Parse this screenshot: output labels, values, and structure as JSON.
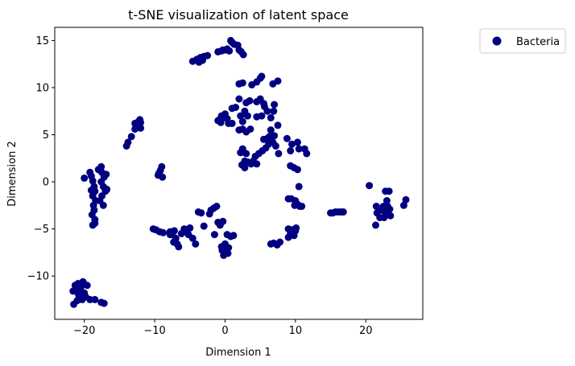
{
  "chart_data": {
    "type": "scatter",
    "title": "t-SNE visualization of latent space",
    "xlabel": "Dimension 1",
    "ylabel": "Dimension 2",
    "xlim": [
      -24.2,
      28.1
    ],
    "ylim": [
      -14.6,
      16.4
    ],
    "xticks": [
      -20,
      -10,
      0,
      10,
      20
    ],
    "yticks": [
      -10,
      -5,
      0,
      5,
      10,
      15
    ],
    "grid": false,
    "legend_position": "outside-top-right",
    "series": [
      {
        "name": "Bacteria",
        "color": "#000080",
        "points": [
          [
            -21.5,
            -13.0
          ],
          [
            -21.3,
            -11.0
          ],
          [
            -21.0,
            -11.5
          ],
          [
            -20.8,
            -12.0
          ],
          [
            -20.5,
            -11.2
          ],
          [
            -20.2,
            -10.6
          ],
          [
            -20.0,
            -11.8
          ],
          [
            -19.8,
            -12.2
          ],
          [
            -20.3,
            -12.5
          ],
          [
            -20.9,
            -10.8
          ],
          [
            -21.6,
            -11.6
          ],
          [
            -19.6,
            -11.0
          ],
          [
            -20.6,
            -11.9
          ],
          [
            -19.2,
            -12.5
          ],
          [
            -18.5,
            -12.5
          ],
          [
            -17.6,
            -12.8
          ],
          [
            -17.2,
            -12.9
          ],
          [
            -21.0,
            -12.6
          ],
          [
            -20.0,
            0.4
          ],
          [
            -19.0,
            0.6
          ],
          [
            -18.8,
            0.1
          ],
          [
            -19.2,
            1.0
          ],
          [
            -18.6,
            -0.5
          ],
          [
            -18.5,
            -1.0
          ],
          [
            -18.8,
            -1.5
          ],
          [
            -18.4,
            -2.0
          ],
          [
            -18.7,
            -2.5
          ],
          [
            -18.6,
            -3.0
          ],
          [
            -18.9,
            -3.5
          ],
          [
            -18.5,
            -4.0
          ],
          [
            -18.8,
            -4.6
          ],
          [
            -18.5,
            -4.4
          ],
          [
            -18.0,
            1.3
          ],
          [
            -17.6,
            1.6
          ],
          [
            -17.5,
            1.0
          ],
          [
            -17.2,
            0.5
          ],
          [
            -17.6,
            0.0
          ],
          [
            -17.3,
            -0.5
          ],
          [
            -17.0,
            -1.0
          ],
          [
            -17.5,
            -1.5
          ],
          [
            -17.8,
            -2.0
          ],
          [
            -17.3,
            -2.5
          ],
          [
            -16.9,
            0.8
          ],
          [
            -16.8,
            -0.8
          ],
          [
            -19.0,
            -0.9
          ],
          [
            -14.0,
            3.8
          ],
          [
            -13.8,
            4.2
          ],
          [
            -13.3,
            4.8
          ],
          [
            -12.8,
            5.6
          ],
          [
            -12.6,
            6.1
          ],
          [
            -12.3,
            6.4
          ],
          [
            -12.0,
            6.3
          ],
          [
            -12.4,
            5.9
          ],
          [
            -12.1,
            6.6
          ],
          [
            -12.8,
            6.2
          ],
          [
            -12.0,
            5.7
          ],
          [
            -9.5,
            0.7
          ],
          [
            -9.2,
            1.2
          ],
          [
            -9.0,
            1.6
          ],
          [
            -8.9,
            0.5
          ],
          [
            -9.4,
            0.9
          ],
          [
            -10.2,
            -5.0
          ],
          [
            -9.8,
            -5.1
          ],
          [
            -9.3,
            -5.3
          ],
          [
            -8.8,
            -5.4
          ],
          [
            -7.8,
            -5.3
          ],
          [
            -7.5,
            -5.6
          ],
          [
            -7.2,
            -5.2
          ],
          [
            -7.0,
            -6.0
          ],
          [
            -6.8,
            -6.6
          ],
          [
            -6.6,
            -6.9
          ],
          [
            -6.2,
            -5.5
          ],
          [
            -5.8,
            -5.0
          ],
          [
            -5.5,
            -5.3
          ],
          [
            -5.2,
            -5.6
          ],
          [
            -5.0,
            -4.9
          ],
          [
            -4.6,
            -6.0
          ],
          [
            -4.2,
            -6.6
          ],
          [
            -3.8,
            -3.2
          ],
          [
            -3.4,
            -3.3
          ],
          [
            -3.0,
            -4.7
          ],
          [
            -2.2,
            -3.4
          ],
          [
            -2.0,
            -3.0
          ],
          [
            -1.6,
            -2.8
          ],
          [
            -1.2,
            -2.6
          ],
          [
            -7.8,
            -5.6
          ],
          [
            -7.3,
            -6.4
          ],
          [
            -1.5,
            -5.6
          ],
          [
            -1.0,
            -4.3
          ],
          [
            -0.7,
            -4.6
          ],
          [
            -0.3,
            -4.2
          ],
          [
            0.3,
            -5.6
          ],
          [
            0.8,
            -5.8
          ],
          [
            1.2,
            -5.7
          ],
          [
            -0.4,
            -7.3
          ],
          [
            0.0,
            -7.1
          ],
          [
            0.5,
            -7.0
          ],
          [
            0.0,
            -6.6
          ],
          [
            -0.5,
            -6.9
          ],
          [
            0.4,
            -7.6
          ],
          [
            -0.2,
            -7.8
          ],
          [
            0.2,
            -6.9
          ],
          [
            -4.6,
            12.8
          ],
          [
            -4.0,
            13.0
          ],
          [
            -3.5,
            13.2
          ],
          [
            -3.0,
            13.3
          ],
          [
            -2.5,
            13.4
          ],
          [
            -3.7,
            12.7
          ],
          [
            -3.2,
            12.9
          ],
          [
            -1.0,
            13.8
          ],
          [
            -0.5,
            13.9
          ],
          [
            0.0,
            14.0
          ],
          [
            0.3,
            14.1
          ],
          [
            0.6,
            13.9
          ],
          [
            1.0,
            14.8
          ],
          [
            1.3,
            14.6
          ],
          [
            1.8,
            14.5
          ],
          [
            2.0,
            14.0
          ],
          [
            2.3,
            13.8
          ],
          [
            2.6,
            13.5
          ],
          [
            0.8,
            15.0
          ],
          [
            -0.3,
            14.0
          ],
          [
            2.0,
            10.4
          ],
          [
            2.5,
            10.5
          ],
          [
            3.8,
            10.3
          ],
          [
            4.5,
            10.6
          ],
          [
            5.0,
            11.0
          ],
          [
            5.2,
            11.2
          ],
          [
            6.8,
            10.4
          ],
          [
            7.5,
            10.7
          ],
          [
            4.5,
            8.5
          ],
          [
            5.0,
            8.8
          ],
          [
            5.5,
            8.3
          ],
          [
            3.0,
            8.4
          ],
          [
            3.5,
            8.6
          ],
          [
            2.0,
            8.8
          ],
          [
            2.8,
            7.5
          ],
          [
            3.2,
            7.0
          ],
          [
            1.5,
            7.9
          ],
          [
            1.0,
            7.8
          ],
          [
            -0.5,
            7.0
          ],
          [
            -0.3,
            6.8
          ],
          [
            0.0,
            7.2
          ],
          [
            0.3,
            6.7
          ],
          [
            -0.8,
            6.6
          ],
          [
            -1.0,
            6.5
          ],
          [
            -0.6,
            6.3
          ],
          [
            0.5,
            6.2
          ],
          [
            1.0,
            6.2
          ],
          [
            2.2,
            7.0
          ],
          [
            2.5,
            6.4
          ],
          [
            3.6,
            5.6
          ],
          [
            3.0,
            5.3
          ],
          [
            2.5,
            5.6
          ],
          [
            2.0,
            5.5
          ],
          [
            4.5,
            6.9
          ],
          [
            5.2,
            7.0
          ],
          [
            5.6,
            8.0
          ],
          [
            6.0,
            7.5
          ],
          [
            6.5,
            6.8
          ],
          [
            6.9,
            7.5
          ],
          [
            7.0,
            8.2
          ],
          [
            7.5,
            6.0
          ],
          [
            6.0,
            4.6
          ],
          [
            5.5,
            4.5
          ],
          [
            6.3,
            4.8
          ],
          [
            6.5,
            5.5
          ],
          [
            7.0,
            4.9
          ],
          [
            6.8,
            4.2
          ],
          [
            7.2,
            3.8
          ],
          [
            7.6,
            3.0
          ],
          [
            5.8,
            3.6
          ],
          [
            5.3,
            3.3
          ],
          [
            4.8,
            3.0
          ],
          [
            4.3,
            2.7
          ],
          [
            4.0,
            2.2
          ],
          [
            3.7,
            1.9
          ],
          [
            3.2,
            2.1
          ],
          [
            2.8,
            2.2
          ],
          [
            2.4,
            1.8
          ],
          [
            2.8,
            1.5
          ],
          [
            3.0,
            3.0
          ],
          [
            2.5,
            3.5
          ],
          [
            2.2,
            3.1
          ],
          [
            4.5,
            1.9
          ],
          [
            6.2,
            4.0
          ],
          [
            8.8,
            4.6
          ],
          [
            9.3,
            3.3
          ],
          [
            9.5,
            4.0
          ],
          [
            10.3,
            4.2
          ],
          [
            10.5,
            3.5
          ],
          [
            11.3,
            3.5
          ],
          [
            11.6,
            3.0
          ],
          [
            9.3,
            1.7
          ],
          [
            9.8,
            1.5
          ],
          [
            10.3,
            1.3
          ],
          [
            9.0,
            -1.8
          ],
          [
            9.4,
            -1.8
          ],
          [
            10.0,
            -2.0
          ],
          [
            10.3,
            -2.4
          ],
          [
            10.6,
            -2.6
          ],
          [
            10.9,
            -2.6
          ],
          [
            9.9,
            -2.5
          ],
          [
            10.5,
            -0.5
          ],
          [
            9.0,
            -5.0
          ],
          [
            9.5,
            -5.1
          ],
          [
            10.0,
            -5.2
          ],
          [
            9.3,
            -5.5
          ],
          [
            9.8,
            -5.7
          ],
          [
            9.0,
            -5.9
          ],
          [
            10.1,
            -4.9
          ],
          [
            7.8,
            -6.4
          ],
          [
            7.4,
            -6.7
          ],
          [
            6.9,
            -6.5
          ],
          [
            6.5,
            -6.6
          ],
          [
            15.0,
            -3.3
          ],
          [
            15.3,
            -3.3
          ],
          [
            15.7,
            -3.2
          ],
          [
            16.1,
            -3.2
          ],
          [
            16.5,
            -3.2
          ],
          [
            16.8,
            -3.2
          ],
          [
            20.5,
            -0.4
          ],
          [
            21.5,
            -2.6
          ],
          [
            21.6,
            -3.3
          ],
          [
            21.4,
            -4.6
          ],
          [
            22.0,
            -3.8
          ],
          [
            22.3,
            -3.0
          ],
          [
            22.5,
            -2.6
          ],
          [
            22.8,
            -1.0
          ],
          [
            23.0,
            -2.0
          ],
          [
            23.3,
            -1.0
          ],
          [
            23.4,
            -2.9
          ],
          [
            23.5,
            -3.6
          ],
          [
            22.8,
            -3.4
          ],
          [
            22.6,
            -3.8
          ],
          [
            23.0,
            -3.0
          ],
          [
            23.1,
            -2.6
          ],
          [
            25.4,
            -2.5
          ],
          [
            25.7,
            -1.9
          ]
        ]
      }
    ]
  }
}
